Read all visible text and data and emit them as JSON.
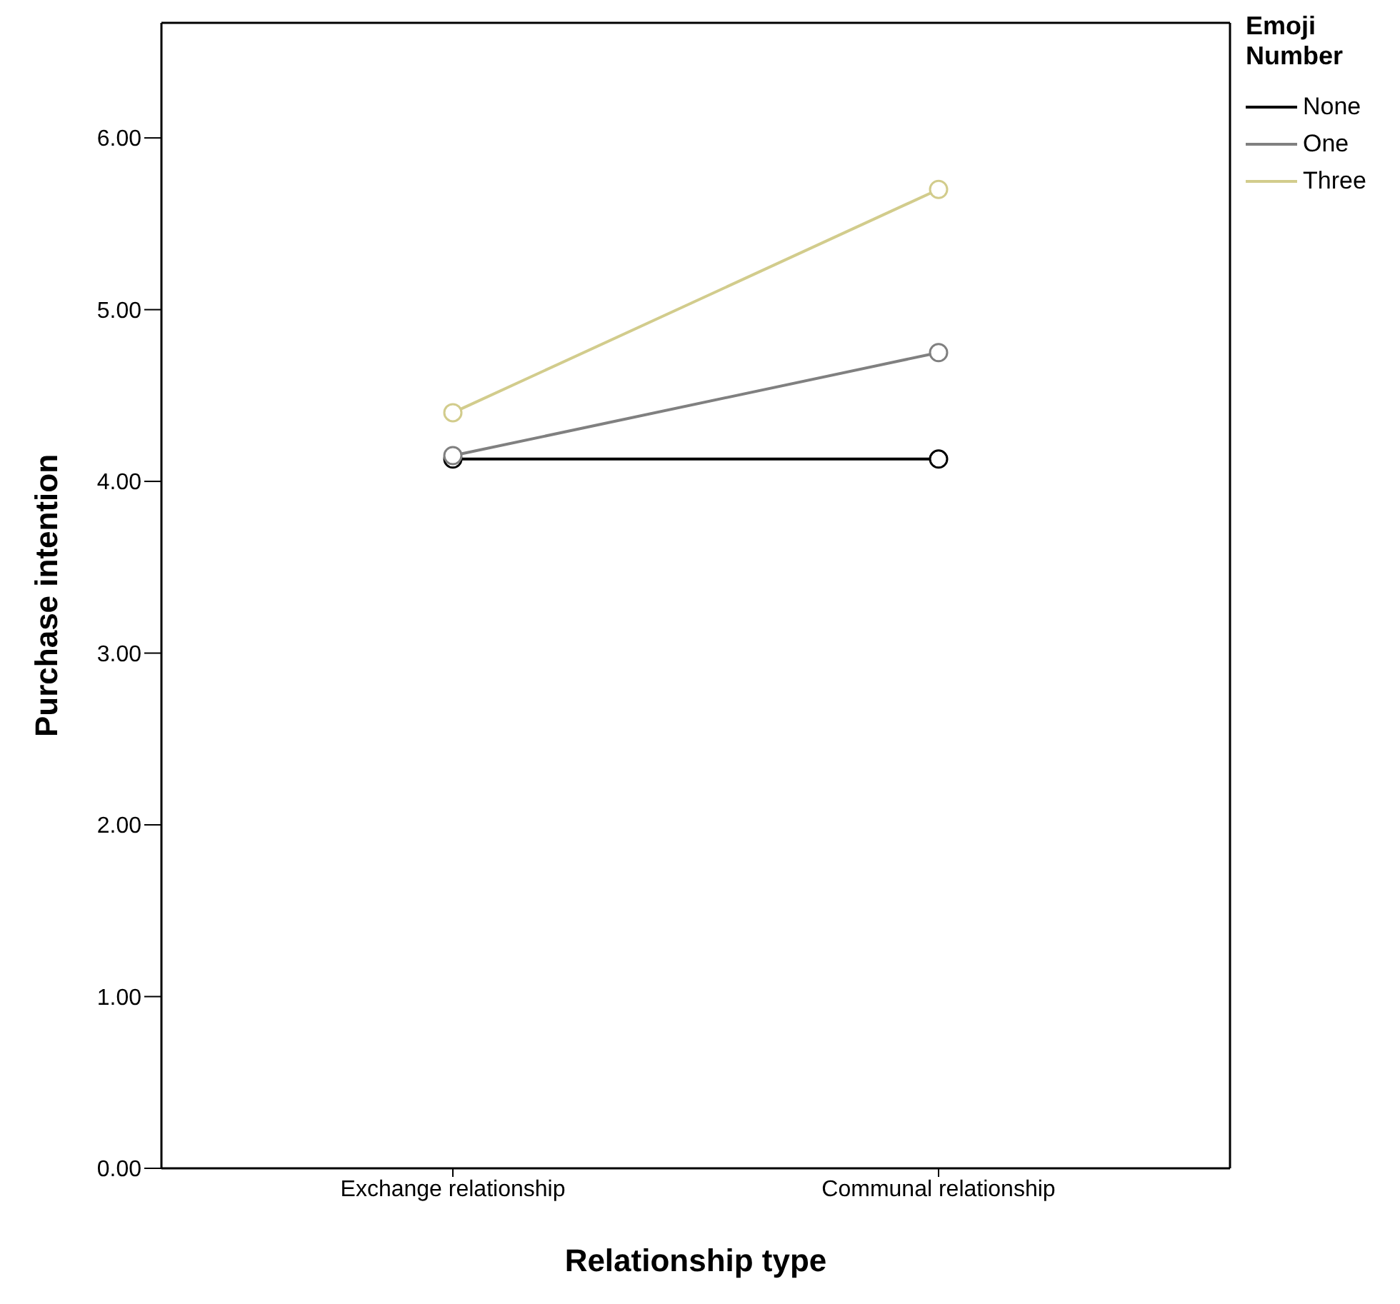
{
  "chart_data": {
    "type": "line",
    "xlabel": "Relationship type",
    "ylabel": "Purchase intention",
    "legend_title": "Emoji Number",
    "categories": [
      "Exchange relationship",
      "Communal relationship"
    ],
    "series": [
      {
        "name": "None",
        "color": "#000000",
        "values": [
          4.13,
          4.13
        ]
      },
      {
        "name": "One",
        "color": "#808080",
        "values": [
          4.15,
          4.75
        ]
      },
      {
        "name": "Three",
        "color": "#d2cc8c",
        "values": [
          4.4,
          5.7
        ]
      }
    ],
    "ylim": [
      0,
      6.67
    ],
    "yticks": [
      {
        "value": 0,
        "label": "0.00"
      },
      {
        "value": 1,
        "label": "1.00"
      },
      {
        "value": 2,
        "label": "2.00"
      },
      {
        "value": 3,
        "label": "3.00"
      },
      {
        "value": 4,
        "label": "4.00"
      },
      {
        "value": 5,
        "label": "5.00"
      },
      {
        "value": 6,
        "label": "6.00"
      }
    ],
    "legend": "right",
    "marker": "circle"
  }
}
